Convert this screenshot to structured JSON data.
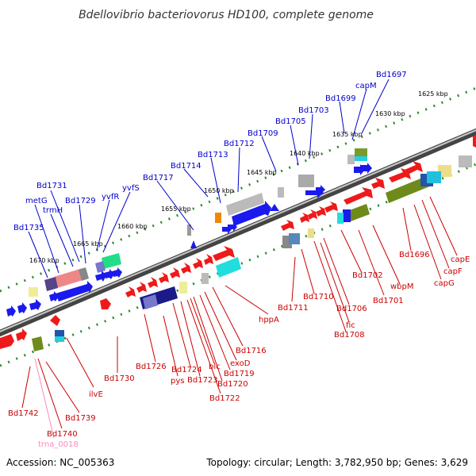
{
  "title": "Bdellovibrio bacteriovorus HD100, complete genome",
  "footer": {
    "accession": "Accession: NC_005363",
    "summary": "Topology: circular; Length: 3,782,950 bp; Genes: 3,629"
  },
  "colors": {
    "forward_label": "#0000cc",
    "reverse_label": "#cc0000",
    "rna_label": "#ff88bb",
    "backbone": "#888888",
    "tick": "#2a8a2a",
    "cds_forward": "#1a1aee",
    "cds_reverse": "#ee1a1a"
  },
  "scale_labels": [
    "1625 kbp",
    "1630 kbp",
    "1635 kbp",
    "1640 kbp",
    "1645 kbp",
    "1650 kbp",
    "1655 kbp",
    "1660 kbp",
    "1665 kbp",
    "1670 kbp"
  ],
  "forward_genes": [
    "Bd1697",
    "capM",
    "Bd1699",
    "Bd1703",
    "Bd1705",
    "Bd1709",
    "Bd1712",
    "Bd1713",
    "Bd1714",
    "Bd1717",
    "yvfS",
    "yvfR",
    "Bd1729",
    "Bd1731",
    "trmH",
    "metG",
    "Bd1735"
  ],
  "reverse_genes": [
    "capE",
    "capF",
    "capG",
    "Bd1696",
    "wbpM",
    "Bd1701",
    "Bd1702",
    "Bd1706",
    "fic",
    "Bd1708",
    "Bd1710",
    "Bd1711",
    "hppA",
    "Bd1716",
    "exoD",
    "Bd1719",
    "Bd1720",
    "blc",
    "Bd1722",
    "Bd1723",
    "Bd1724",
    "pys",
    "Bd1726",
    "Bd1730",
    "ilvE",
    "Bd1739",
    "Bd1740",
    "Bd1742"
  ],
  "rna_genes": [
    "trna_0018"
  ]
}
